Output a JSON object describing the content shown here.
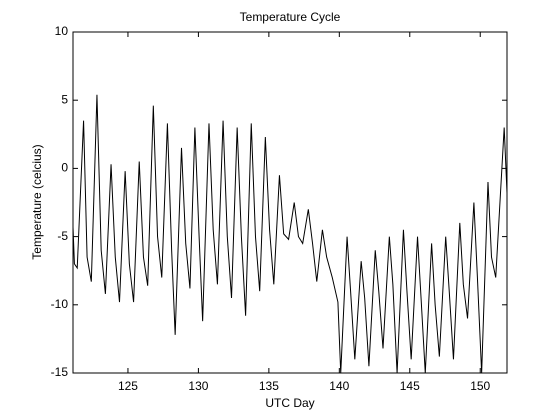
{
  "chart_data": {
    "type": "line",
    "title": "Temperature Cycle",
    "xlabel": "UTC Day",
    "ylabel": "Temperature (celcius)",
    "xlim": [
      121.1,
      151.9
    ],
    "ylim": [
      -15,
      10
    ],
    "xticks": [
      125,
      130,
      135,
      140,
      145,
      150
    ],
    "yticks": [
      -15,
      -10,
      -5,
      0,
      5,
      10
    ],
    "grid": false,
    "series": [
      {
        "name": "Temperature",
        "color": "#000000",
        "x": [
          121.1,
          121.2,
          121.4,
          121.85,
          122.1,
          122.4,
          122.8,
          123.1,
          123.4,
          123.8,
          124.1,
          124.4,
          124.8,
          125.1,
          125.4,
          125.8,
          126.1,
          126.4,
          126.8,
          127.1,
          127.4,
          127.8,
          128.1,
          128.35,
          128.8,
          129.1,
          129.4,
          129.75,
          130.05,
          130.3,
          130.75,
          131.05,
          131.35,
          131.75,
          132.05,
          132.35,
          132.75,
          133.05,
          133.35,
          133.75,
          134.05,
          134.35,
          134.75,
          135.05,
          135.35,
          135.75,
          136.05,
          136.4,
          136.8,
          137.1,
          137.4,
          137.8,
          138.1,
          138.4,
          138.8,
          139.1,
          139.5,
          139.9,
          140.1,
          140.55,
          140.8,
          141.1,
          141.55,
          141.8,
          142.1,
          142.55,
          142.8,
          143.1,
          143.55,
          143.8,
          144.1,
          144.55,
          144.8,
          145.1,
          145.55,
          145.8,
          146.1,
          146.55,
          146.8,
          147.1,
          147.55,
          147.8,
          148.1,
          148.55,
          148.8,
          149.1,
          149.55,
          149.8,
          150.1,
          150.55,
          150.8,
          151.1,
          151.7,
          151.9
        ],
        "values": [
          -4.3,
          -7.0,
          -7.3,
          3.5,
          -6.5,
          -8.3,
          5.4,
          -6.0,
          -9.2,
          0.3,
          -6.5,
          -9.8,
          -0.2,
          -7.0,
          -9.8,
          0.5,
          -6.5,
          -8.6,
          4.6,
          -5.0,
          -8.0,
          3.3,
          -6.0,
          -12.2,
          1.5,
          -5.5,
          -8.8,
          3.0,
          -5.0,
          -11.2,
          3.3,
          -4.5,
          -8.5,
          3.5,
          -5.0,
          -9.5,
          3.0,
          -5.0,
          -10.8,
          3.3,
          -5.0,
          -9.0,
          2.3,
          -4.5,
          -8.5,
          -0.5,
          -4.8,
          -5.2,
          -2.5,
          -5.0,
          -5.5,
          -3.0,
          -5.5,
          -8.3,
          -4.5,
          -6.5,
          -8.0,
          -9.8,
          -15.0,
          -5.0,
          -9.0,
          -14.0,
          -6.8,
          -9.5,
          -14.5,
          -6.0,
          -9.0,
          -13.2,
          -5.0,
          -8.5,
          -15.0,
          -4.5,
          -9.0,
          -14.0,
          -5.0,
          -9.5,
          -15.0,
          -5.5,
          -10.0,
          -13.8,
          -5.0,
          -9.0,
          -14.0,
          -4.0,
          -8.5,
          -11.0,
          -2.5,
          -8.0,
          -15.0,
          -1.0,
          -6.5,
          -8.0,
          3.0,
          -1.8
        ]
      }
    ]
  }
}
